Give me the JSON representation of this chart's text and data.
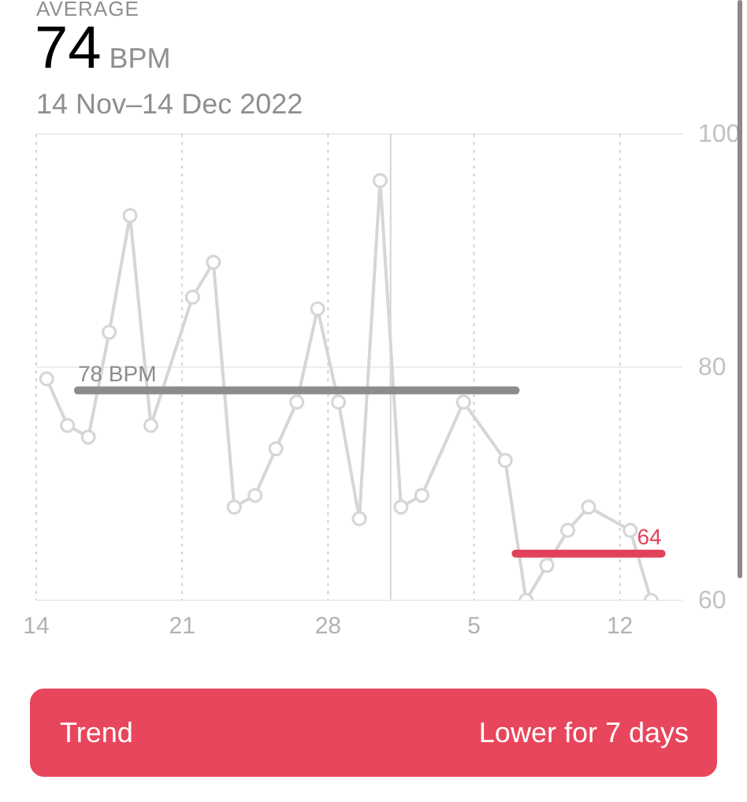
{
  "chart_data": {
    "type": "line",
    "title": "74",
    "subtitle": "14 Nov–14 Dec 2022",
    "annotations": [
      "AVERAGE",
      "BPM",
      "Trend",
      "Lower for 7 days"
    ],
    "xlim": [
      "2022-11-14",
      "2022-12-15"
    ],
    "xticks": [
      {
        "value": "2022-11-14",
        "label": "14"
      },
      {
        "value": "2022-11-21",
        "label": "21"
      },
      {
        "value": "2022-11-28",
        "label": "28"
      },
      {
        "value": "2022-12-05",
        "label": "5"
      },
      {
        "value": "2022-12-12",
        "label": "12"
      }
    ],
    "ylim": [
      60,
      100
    ],
    "yticks": [
      60,
      80,
      100
    ],
    "grid": true,
    "marker": "circle",
    "ref_lines": [
      {
        "axis": "x",
        "value": "2022-12-01",
        "color": "#d4d4d4"
      }
    ],
    "series": [
      {
        "color": "#d6d6d6",
        "x": [
          "2022-11-14T12:00",
          "2022-11-15T12:00",
          "2022-11-16T12:00",
          "2022-11-17T12:00",
          "2022-11-18T12:00",
          "2022-11-19T12:00",
          "2022-11-21T12:00",
          "2022-11-22T12:00",
          "2022-11-23T12:00",
          "2022-11-24T12:00",
          "2022-11-25T12:00",
          "2022-11-26T12:00",
          "2022-11-27T12:00",
          "2022-11-28T12:00",
          "2022-11-29T12:00",
          "2022-11-30T12:00",
          "2022-12-01T12:00",
          "2022-12-02T12:00",
          "2022-12-04T12:00",
          "2022-12-06T12:00",
          "2022-12-07T12:00",
          "2022-12-08T12:00",
          "2022-12-09T12:00",
          "2022-12-10T12:00",
          "2022-12-12T12:00",
          "2022-12-13T12:00"
        ],
        "values": [
          79,
          75,
          74,
          83,
          93,
          75,
          86,
          89,
          68,
          69,
          73,
          77,
          85,
          77,
          67,
          96,
          68,
          69,
          77,
          72,
          60,
          63,
          66,
          68,
          66,
          60
        ]
      },
      {
        "color": "#8c8c8c",
        "marker": "none",
        "x": [
          "2022-11-16",
          "2022-12-07"
        ],
        "values": [
          78,
          78
        ],
        "value_labels": [
          "78 BPM",
          null
        ]
      },
      {
        "color": "#e24259",
        "marker": "none",
        "x": [
          "2022-12-07",
          "2022-12-14"
        ],
        "values": [
          64,
          64
        ],
        "value_labels": [
          null,
          "64"
        ]
      }
    ]
  }
}
